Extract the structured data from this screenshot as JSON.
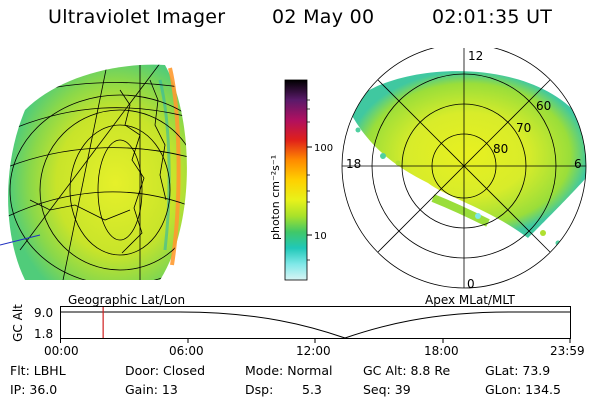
{
  "header": {
    "instrument": "Ultraviolet Imager",
    "date": "02 May 00",
    "time": "02:01:35 UT"
  },
  "left_panel": {
    "label": "Geographic Lat/Lon"
  },
  "right_panel": {
    "label": "Apex MLat/MLT",
    "mlt_labels": {
      "top": "12",
      "left": "18",
      "right": "6",
      "bottom": "0"
    },
    "lat_labels": [
      "60",
      "70",
      "80"
    ]
  },
  "colorbar": {
    "unit_label": "photon cm⁻²s⁻¹",
    "ticks": [
      "100",
      "10"
    ],
    "colors": [
      "#000000",
      "#5a1a6a",
      "#b01060",
      "#e0201a",
      "#ff8a00",
      "#ffd000",
      "#e8f21a",
      "#a8e22a",
      "#40c868",
      "#20c8b8",
      "#7fe8e8",
      "#d8f4f4"
    ]
  },
  "timeline": {
    "axis_label": "GC Alt",
    "y_ticks": [
      "9.0",
      "1.8"
    ],
    "x_ticks": [
      "00:00",
      "06:00",
      "12:00",
      "18:00",
      "23:59"
    ],
    "marker_time_hours": 2.03,
    "marker_color": "#d02020"
  },
  "status": {
    "flt": "Flt: LBHL",
    "door": "Door: Closed",
    "mode": "Mode: Normal",
    "gc_alt": "GC Alt: 8.8 Re",
    "glat": "GLat: 73.9",
    "ip": "IP: 36.0",
    "gain": "Gain: 13",
    "dsp_label": "Dsp:",
    "dsp_value": "5.3",
    "seq": "Seq: 39",
    "glon": "GLon: 134.5"
  }
}
